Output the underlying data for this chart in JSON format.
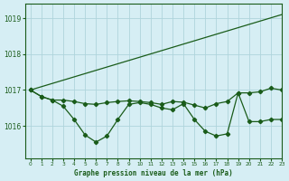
{
  "title": "Graphe pression niveau de la mer (hPa)",
  "bg_color": "#d6eef4",
  "grid_color": "#afd4dc",
  "line_color": "#1a5c1a",
  "xlim": [
    -0.5,
    23
  ],
  "ylim": [
    1015.1,
    1019.4
  ],
  "yticks": [
    1016,
    1017,
    1018,
    1019
  ],
  "xticks": [
    0,
    1,
    2,
    3,
    4,
    5,
    6,
    7,
    8,
    9,
    10,
    11,
    12,
    13,
    14,
    15,
    16,
    17,
    18,
    19,
    20,
    21,
    22,
    23
  ],
  "series_line_x": [
    0,
    23
  ],
  "series_line_y": [
    1017.0,
    1019.1
  ],
  "series2_x": [
    0,
    1,
    2,
    3,
    4,
    5,
    6,
    7,
    8,
    9,
    10,
    11,
    12,
    13,
    14,
    15,
    16,
    17,
    18,
    19,
    20,
    21,
    22,
    23
  ],
  "series2_y": [
    1017.0,
    1016.82,
    1016.72,
    1016.72,
    1016.68,
    1016.62,
    1016.6,
    1016.65,
    1016.68,
    1016.7,
    1016.68,
    1016.65,
    1016.6,
    1016.68,
    1016.66,
    1016.58,
    1016.5,
    1016.62,
    1016.68,
    1016.92,
    1016.92,
    1016.95,
    1017.05,
    1017.0
  ],
  "series3_x": [
    0,
    1,
    2,
    3,
    4,
    5,
    6,
    7,
    8,
    9,
    10,
    11,
    12,
    13,
    14,
    15,
    16,
    17,
    18,
    19,
    20,
    21,
    22,
    23
  ],
  "series3_y": [
    1017.0,
    1016.82,
    1016.72,
    1016.55,
    1016.18,
    1015.75,
    1015.55,
    1015.72,
    1016.18,
    1016.6,
    1016.65,
    1016.6,
    1016.5,
    1016.45,
    1016.62,
    1016.18,
    1015.85,
    1015.72,
    1015.78,
    1016.92,
    1016.12,
    1016.12,
    1016.18,
    1016.18
  ]
}
